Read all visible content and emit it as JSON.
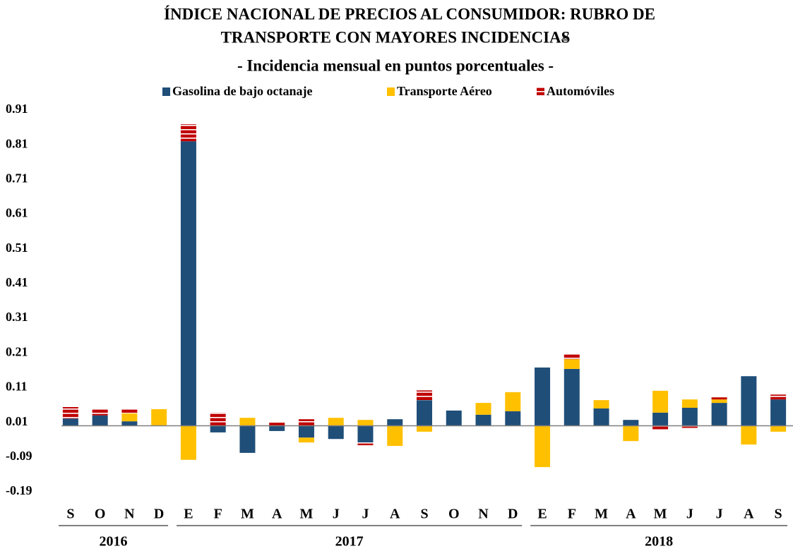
{
  "chart_data": {
    "type": "bar",
    "stacked": true,
    "title": [
      "ÍNDICE NACIONAL DE PRECIOS AL CONSUMIDOR: RUBRO DE",
      "TRANSPORTE CON MAYORES INCIDENCIAS"
    ],
    "title_note": "1/",
    "subtitle": "- Incidencia mensual en puntos porcentuales -",
    "categories": [
      "S",
      "O",
      "N",
      "D",
      "E",
      "F",
      "M",
      "A",
      "M",
      "J",
      "J",
      "A",
      "S",
      "O",
      "N",
      "D",
      "E",
      "F",
      "M",
      "A",
      "M",
      "J",
      "J",
      "A",
      "S"
    ],
    "year_groups": [
      {
        "label": "2016",
        "size": 4
      },
      {
        "label": "2017",
        "size": 12
      },
      {
        "label": "2018",
        "size": 9
      }
    ],
    "series": [
      {
        "name": "Gasolina de bajo octanaje",
        "color": "#1f4e79",
        "values": [
          0.021,
          0.03,
          0.013,
          0,
          0.82,
          -0.019,
          -0.078,
          -0.015,
          -0.034,
          -0.038,
          -0.048,
          0.019,
          0.074,
          0.044,
          0.032,
          0.042,
          0.168,
          0.164,
          0.05,
          0.017,
          0.038,
          0.052,
          0.066,
          0.143,
          0.076
        ]
      },
      {
        "name": "Transporte Aéreo",
        "color": "#ffc000",
        "values": [
          0,
          0,
          0.023,
          0.048,
          -0.098,
          0,
          0.023,
          0,
          -0.014,
          0.023,
          0.017,
          -0.058,
          -0.017,
          0,
          0.034,
          0.055,
          -0.119,
          0.028,
          0.024,
          -0.044,
          0.063,
          0.024,
          0.01,
          -0.054,
          -0.017
        ]
      },
      {
        "name": "Automóviles",
        "color": "#c00000",
        "values": [
          0.033,
          0.02,
          0.012,
          0,
          0.049,
          0.038,
          0,
          0.009,
          0.019,
          0,
          -0.008,
          0,
          0.028,
          0,
          0,
          0,
          0,
          0.016,
          0,
          0,
          -0.01,
          -0.006,
          0.006,
          0,
          0.014
        ]
      }
    ],
    "ylim": [
      -0.19,
      0.91
    ],
    "yticks": [
      0.91,
      0.81,
      0.71,
      0.61,
      0.51,
      0.41,
      0.31,
      0.21,
      0.11,
      0.01,
      -0.09,
      -0.19
    ],
    "grid": false,
    "legend": "top"
  }
}
